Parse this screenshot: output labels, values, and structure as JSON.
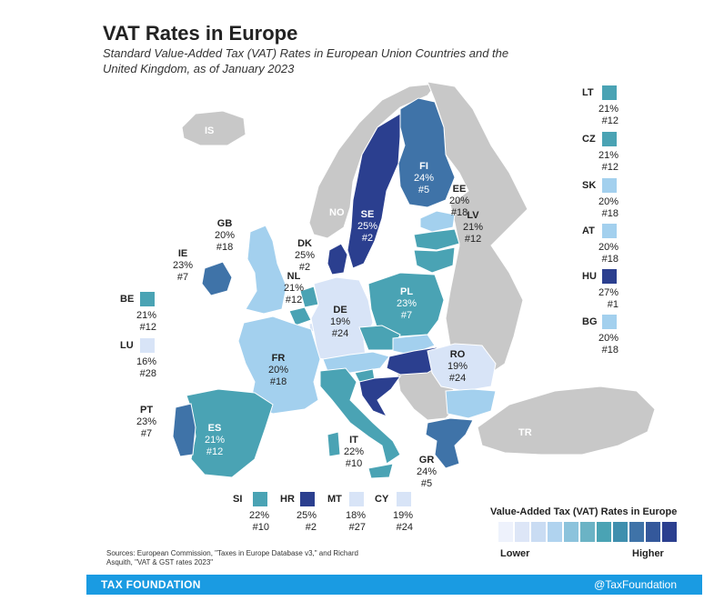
{
  "title": "VAT Rates in Europe",
  "subtitle": "Standard Value-Added Tax (VAT) Rates in European Union Countries and the United Kingdom, as of January 2023",
  "colors": {
    "rank1": "#2b3f8f",
    "rank2": "#3f73a8",
    "rank3": "#4aa3b4",
    "rank4": "#a3d0ee",
    "rank5": "#d8e4f7",
    "nonEU": "#c8c8c8",
    "water": "#ffffff",
    "footer": "#1a9be2"
  },
  "map_labels": {
    "IS": {
      "code": "IS"
    },
    "NO": {
      "code": "NO"
    },
    "TR": {
      "code": "TR"
    },
    "FI": {
      "code": "FI",
      "rate": "24%",
      "rank": "#5"
    },
    "SE": {
      "code": "SE",
      "rate": "25%",
      "rank": "#2"
    },
    "EE": {
      "code": "EE",
      "rate": "20%",
      "rank": "#18"
    },
    "LV": {
      "code": "LV",
      "rate": "21%",
      "rank": "#12"
    },
    "DK": {
      "code": "DK",
      "rate": "25%",
      "rank": "#2"
    },
    "GB": {
      "code": "GB",
      "rate": "20%",
      "rank": "#18"
    },
    "IE": {
      "code": "IE",
      "rate": "23%",
      "rank": "#7"
    },
    "NL": {
      "code": "NL",
      "rate": "21%",
      "rank": "#12"
    },
    "DE": {
      "code": "DE",
      "rate": "19%",
      "rank": "#24"
    },
    "PL": {
      "code": "PL",
      "rate": "23%",
      "rank": "#7"
    },
    "FR": {
      "code": "FR",
      "rate": "20%",
      "rank": "#18"
    },
    "RO": {
      "code": "RO",
      "rate": "19%",
      "rank": "#24"
    },
    "PT": {
      "code": "PT",
      "rate": "23%",
      "rank": "#7"
    },
    "ES": {
      "code": "ES",
      "rate": "21%",
      "rank": "#12"
    },
    "IT": {
      "code": "IT",
      "rate": "22%",
      "rank": "#10"
    },
    "GR": {
      "code": "GR",
      "rate": "24%",
      "rank": "#5"
    }
  },
  "side_legend": {
    "BE": {
      "code": "BE",
      "rate": "21%",
      "rank": "#12"
    },
    "LU": {
      "code": "LU",
      "rate": "16%",
      "rank": "#28"
    },
    "LT": {
      "code": "LT",
      "rate": "21%",
      "rank": "#12"
    },
    "CZ": {
      "code": "CZ",
      "rate": "21%",
      "rank": "#12"
    },
    "SK": {
      "code": "SK",
      "rate": "20%",
      "rank": "#18"
    },
    "AT": {
      "code": "AT",
      "rate": "20%",
      "rank": "#18"
    },
    "HU": {
      "code": "HU",
      "rate": "27%",
      "rank": "#1"
    },
    "BG": {
      "code": "BG",
      "rate": "20%",
      "rank": "#18"
    },
    "SI": {
      "code": "SI",
      "rate": "22%",
      "rank": "#10"
    },
    "HR": {
      "code": "HR",
      "rate": "25%",
      "rank": "#2"
    },
    "MT": {
      "code": "MT",
      "rate": "18%",
      "rank": "#27"
    },
    "CY": {
      "code": "CY",
      "rate": "19%",
      "rank": "#24"
    }
  },
  "scale": {
    "title": "Value-Added Tax (VAT) Rates in Europe",
    "lower": "Lower",
    "higher": "Higher",
    "swatches": [
      "#eef2fc",
      "#dde6f7",
      "#c9dcf3",
      "#b0d3ef",
      "#8cc3dc",
      "#6bb3c5",
      "#4aa3b4",
      "#3f8fae",
      "#3f73a8",
      "#34589b",
      "#2b3f8f"
    ]
  },
  "sources": "Sources: European Commission, \"Taxes in Europe Database v3,\" and Richard Asquith, \"VAT & GST rates 2023\"",
  "footer": {
    "left": "TAX FOUNDATION",
    "right": "@TaxFoundation"
  }
}
